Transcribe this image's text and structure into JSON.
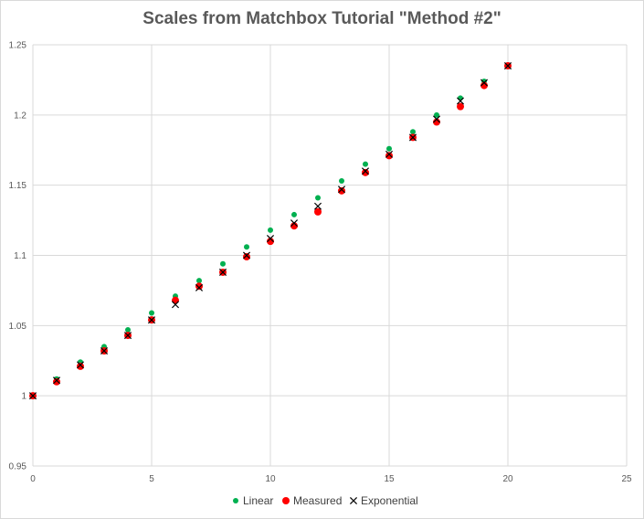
{
  "chart_data": {
    "type": "scatter",
    "title": "Scales from Matchbox Tutorial \"Method #2\"",
    "xlim": [
      0,
      25
    ],
    "ylim": [
      0.95,
      1.25
    ],
    "x_ticks": [
      "0",
      "5",
      "10",
      "15",
      "20",
      "25"
    ],
    "y_ticks": [
      "0.95",
      "1",
      "1.05",
      "1.1",
      "1.15",
      "1.2",
      "1.25"
    ],
    "grid": true,
    "legend": "bottom",
    "series": [
      {
        "name": "Linear",
        "marker": "circle-small",
        "color": "#00b050",
        "x": [
          0,
          1,
          2,
          3,
          4,
          5,
          6,
          7,
          8,
          9,
          10,
          11,
          12,
          13,
          14,
          15,
          16,
          17,
          18,
          19,
          20
        ],
        "y": [
          1.0,
          1.012,
          1.024,
          1.035,
          1.047,
          1.059,
          1.071,
          1.082,
          1.094,
          1.106,
          1.118,
          1.129,
          1.141,
          1.153,
          1.165,
          1.176,
          1.188,
          1.2,
          1.212,
          1.224,
          1.235
        ]
      },
      {
        "name": "Measured",
        "marker": "circle",
        "color": "#ff0000",
        "x": [
          0,
          1,
          2,
          3,
          4,
          5,
          6,
          7,
          8,
          9,
          10,
          11,
          12,
          13,
          14,
          15,
          16,
          17,
          18,
          19,
          20
        ],
        "y": [
          1.0,
          1.01,
          1.021,
          1.032,
          1.043,
          1.054,
          1.068,
          1.078,
          1.088,
          1.099,
          1.11,
          1.121,
          1.131,
          1.146,
          1.159,
          1.171,
          1.184,
          1.195,
          1.206,
          1.221,
          1.235
        ]
      },
      {
        "name": "Exponential",
        "marker": "x",
        "color": "#000000",
        "x": [
          0,
          1,
          2,
          3,
          4,
          5,
          6,
          7,
          8,
          9,
          10,
          11,
          12,
          13,
          14,
          15,
          16,
          17,
          18,
          19,
          20
        ],
        "y": [
          1.0,
          1.011,
          1.022,
          1.032,
          1.043,
          1.054,
          1.065,
          1.077,
          1.088,
          1.1,
          1.112,
          1.123,
          1.135,
          1.147,
          1.16,
          1.172,
          1.184,
          1.197,
          1.21,
          1.223,
          1.235
        ]
      }
    ]
  }
}
